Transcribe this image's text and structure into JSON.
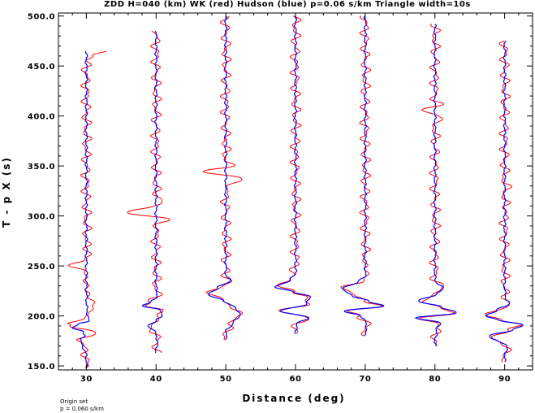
{
  "chart_data": {
    "type": "line",
    "title": "ZDD H=040 (km) WK (red) Hudson (blue) p=0.06 s/km Triangle width=10s",
    "xlabel": "Distance (deg)",
    "ylabel": "T - p X (s)",
    "xlim": [
      26,
      94
    ],
    "ylim": [
      146,
      503
    ],
    "xticks": [
      30,
      40,
      50,
      60,
      70,
      80,
      90
    ],
    "xtick_labels": [
      "30",
      "40",
      "50",
      "60",
      "70",
      "80",
      "90"
    ],
    "yticks": [
      150,
      200,
      250,
      300,
      350,
      400,
      450,
      500
    ],
    "ytick_labels": [
      "150.0",
      "200.0",
      "250.0",
      "300.0",
      "350.0",
      "400.0",
      "450.0",
      "500.0"
    ],
    "grid": false,
    "footnote": [
      "Origin set",
      "p = 0.060 s/km"
    ],
    "colors": {
      "wk": "#ff0000",
      "hudson": "#0000ff"
    },
    "series": [
      {
        "distance": 30,
        "t_start": 148,
        "t_end": 465,
        "blue_first_pulse": [
          [
            160,
            0
          ],
          [
            168,
            -0.4
          ],
          [
            176,
            -0.9
          ],
          [
            180,
            -0.1
          ],
          [
            184,
            -0.5
          ],
          [
            188,
            -2.0
          ],
          [
            192,
            -1.0
          ],
          [
            195,
            0.3
          ],
          [
            200,
            0.2
          ],
          [
            210,
            0.05
          ],
          [
            230,
            0.0
          ]
        ],
        "red_first_pulse": [
          [
            175,
            0
          ],
          [
            180,
            0.6
          ],
          [
            186,
            1.5
          ],
          [
            190,
            -0.8
          ],
          [
            194,
            -1.5
          ],
          [
            198,
            -1.2
          ],
          [
            203,
            0.6
          ],
          [
            208,
            1.2
          ],
          [
            214,
            0.4
          ],
          [
            220,
            0.8
          ],
          [
            228,
            -0.4
          ],
          [
            235,
            0.3
          ],
          [
            245,
            -0.6
          ],
          [
            250,
            -1.8
          ],
          [
            256,
            -0.8
          ],
          [
            262,
            0.6
          ],
          [
            270,
            0.0
          ]
        ],
        "red_end_kick": [
          [
            455,
            0
          ],
          [
            460,
            1.2
          ],
          [
            465,
            2.8
          ]
        ]
      },
      {
        "distance": 40,
        "t_start": 163,
        "t_end": 485,
        "blue_first_pulse": [
          [
            165,
            0
          ],
          [
            175,
            0.2
          ],
          [
            185,
            -0.2
          ],
          [
            190,
            -1.1
          ],
          [
            196,
            0.0
          ],
          [
            200,
            1.0
          ],
          [
            206,
            0.5
          ],
          [
            210,
            -1.8
          ],
          [
            214,
            -0.8
          ],
          [
            220,
            0.2
          ],
          [
            230,
            0.0
          ]
        ],
        "red_first_pulse": [
          [
            285,
            0
          ],
          [
            292,
            0.4
          ],
          [
            297,
            1.5
          ],
          [
            303,
            -4.0
          ],
          [
            309,
            -0.8
          ],
          [
            316,
            1.0
          ],
          [
            322,
            0.0
          ]
        ]
      },
      {
        "distance": 50,
        "t_start": 176,
        "t_end": 500,
        "blue_first_pulse": [
          [
            178,
            0
          ],
          [
            185,
            0.1
          ],
          [
            192,
            0.9
          ],
          [
            200,
            2.0
          ],
          [
            208,
            1.5
          ],
          [
            215,
            -0.4
          ],
          [
            222,
            -2.5
          ],
          [
            228,
            -1.2
          ],
          [
            235,
            0.6
          ],
          [
            242,
            0.0
          ]
        ],
        "red_first_pulse": [
          [
            325,
            0
          ],
          [
            332,
            1.0
          ],
          [
            338,
            2.0
          ],
          [
            344,
            -2.8
          ],
          [
            350,
            0.6
          ],
          [
            356,
            0.0
          ]
        ]
      },
      {
        "distance": 60,
        "t_start": 182,
        "t_end": 500,
        "blue_first_pulse": [
          [
            184,
            0
          ],
          [
            192,
            0.2
          ],
          [
            198,
            1.8
          ],
          [
            205,
            -2.0
          ],
          [
            212,
            1.5
          ],
          [
            219,
            2.2
          ],
          [
            224,
            -0.3
          ],
          [
            229,
            -2.8
          ],
          [
            236,
            -0.8
          ],
          [
            242,
            0.0
          ]
        ],
        "red_first_pulse": [
          [
            238,
            0
          ],
          [
            244,
            -1.0
          ],
          [
            250,
            0.5
          ],
          [
            256,
            0.0
          ]
        ]
      },
      {
        "distance": 70,
        "t_start": 180,
        "t_end": 500,
        "blue_first_pulse": [
          [
            182,
            0
          ],
          [
            192,
            0.2
          ],
          [
            200,
            -0.6
          ],
          [
            205,
            -3.0
          ],
          [
            210,
            2.6
          ],
          [
            215,
            0.5
          ],
          [
            220,
            -2.0
          ],
          [
            228,
            -3.2
          ],
          [
            234,
            -1.0
          ],
          [
            240,
            0.0
          ]
        ],
        "red_first_pulse": [
          [
            238,
            0
          ],
          [
            244,
            0.8
          ],
          [
            250,
            -0.4
          ],
          [
            256,
            0.0
          ]
        ]
      },
      {
        "distance": 80,
        "t_start": 170,
        "t_end": 492,
        "blue_first_pulse": [
          [
            172,
            0
          ],
          [
            185,
            0.2
          ],
          [
            193,
            0.7
          ],
          [
            198,
            -2.6
          ],
          [
            203,
            3.0
          ],
          [
            209,
            1.0
          ],
          [
            215,
            -2.5
          ],
          [
            222,
            0.4
          ],
          [
            228,
            1.1
          ],
          [
            236,
            0.0
          ]
        ],
        "red_first_pulse": [
          [
            394,
            0
          ],
          [
            400,
            1.0
          ],
          [
            406,
            -1.8
          ],
          [
            412,
            0.6
          ],
          [
            418,
            0.0
          ]
        ]
      },
      {
        "distance": 90,
        "t_start": 154,
        "t_end": 475,
        "blue_first_pulse": [
          [
            156,
            0
          ],
          [
            170,
            0.3
          ],
          [
            180,
            -2.3
          ],
          [
            186,
            1.2
          ],
          [
            191,
            2.5
          ],
          [
            196,
            -0.8
          ],
          [
            200,
            -2.8
          ],
          [
            206,
            -1.0
          ],
          [
            212,
            0.6
          ],
          [
            218,
            0.2
          ],
          [
            225,
            0.0
          ]
        ],
        "red_first_pulse": [
          [
            300,
            0
          ],
          [
            310,
            0.4
          ],
          [
            318,
            -0.3
          ],
          [
            326,
            0.4
          ],
          [
            334,
            0.0
          ]
        ]
      }
    ]
  }
}
